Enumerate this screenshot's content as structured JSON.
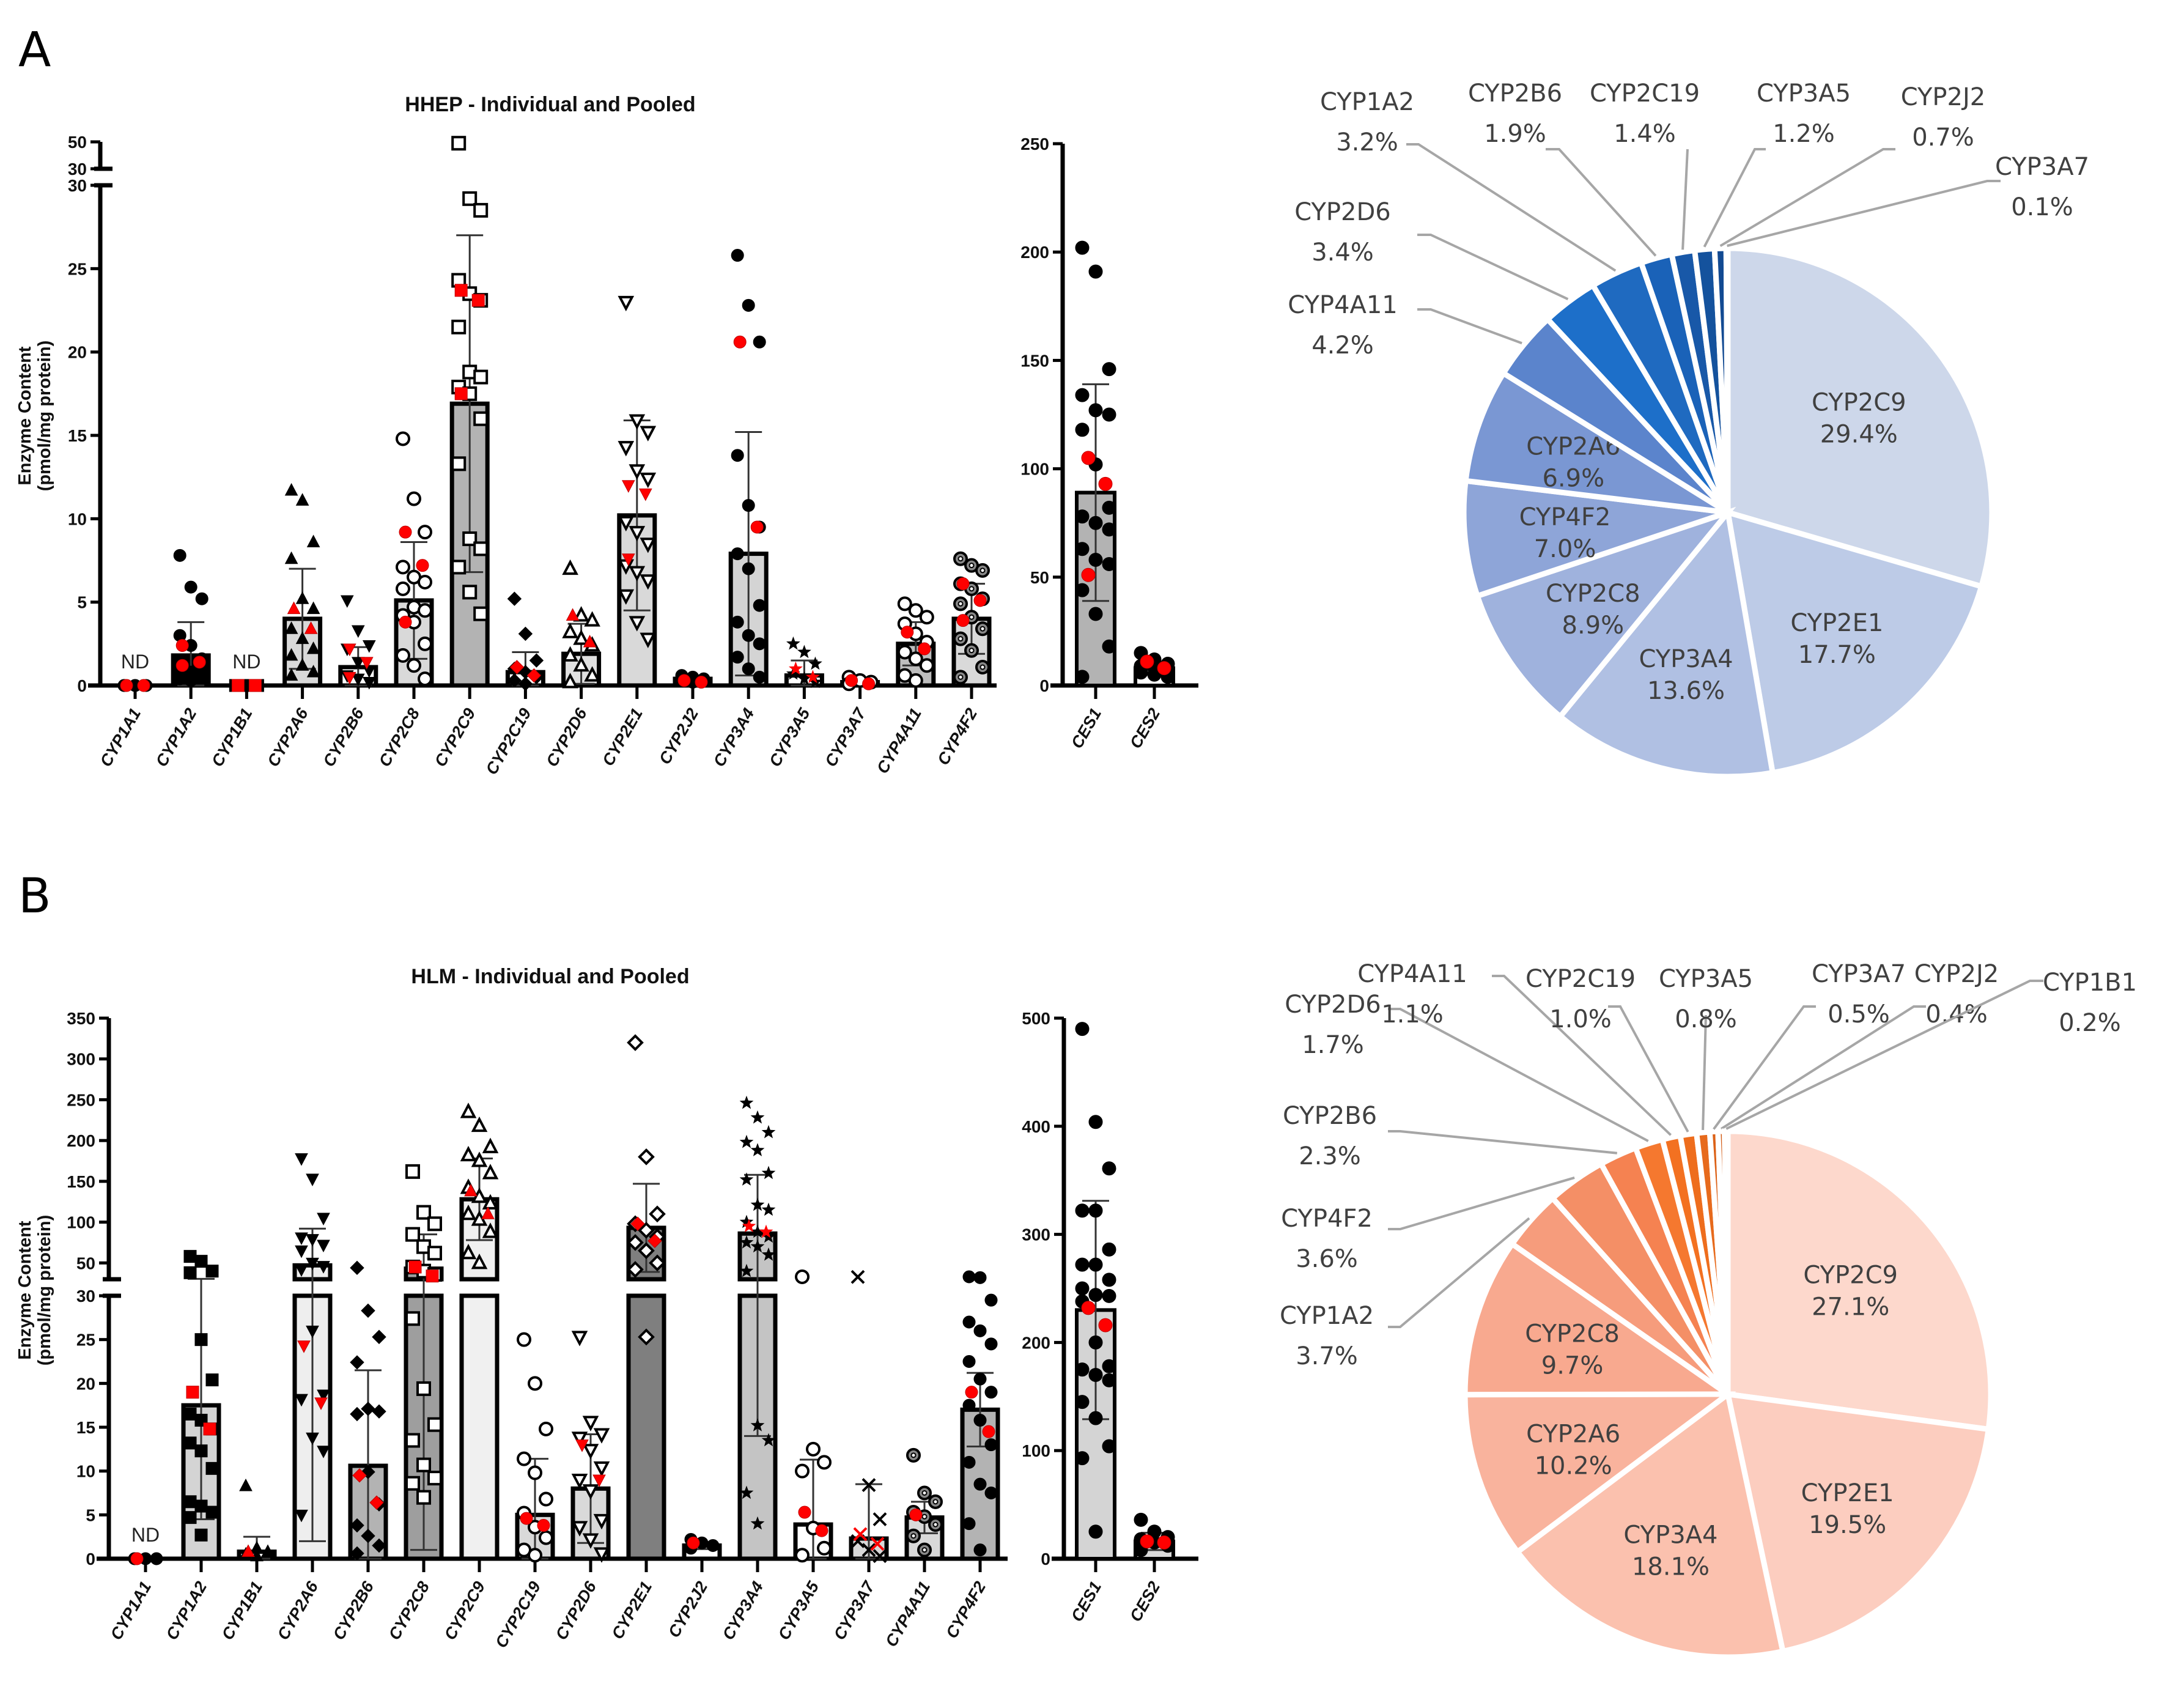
{
  "figure": {
    "panel_a_letter": "A",
    "panel_b_letter": "B"
  },
  "chart_data": [
    {
      "id": "hhep_bars",
      "type": "bar",
      "title": "HHEP - Individual and Pooled",
      "ylabel_line1": "Enzyme Content",
      "ylabel_line2": "(pmol/mg protein)",
      "xlabel": "",
      "axis_break": {
        "lower_range": [
          0,
          30
        ],
        "upper_range": [
          30,
          50
        ]
      },
      "lower_ticks": [
        "0",
        "5",
        "10",
        "15",
        "20",
        "25",
        "30"
      ],
      "upper_ticks": [
        "30",
        "50"
      ],
      "categories": [
        "CYP1A1",
        "CYP1A2",
        "CYP1B1",
        "CYP2A6",
        "CYP2B6",
        "CYP2C8",
        "CYP2C9",
        "CYP2C19",
        "CYP2D6",
        "CYP2E1",
        "CYP2J2",
        "CYP3A4",
        "CYP3A5",
        "CYP3A7",
        "CYP4A11",
        "CYP4F2"
      ],
      "values": [
        0,
        1.8,
        0,
        4.0,
        1.1,
        5.1,
        16.9,
        0.8,
        1.9,
        10.2,
        0.4,
        7.9,
        0.6,
        0.2,
        2.5,
        4.0
      ],
      "sd": [
        0,
        2.0,
        0,
        3.0,
        1.2,
        3.5,
        10.1,
        1.2,
        1.8,
        5.7,
        0.2,
        7.3,
        0.9,
        0.1,
        1.3,
        2.1
      ],
      "bar_fills": [
        "#ffffff",
        "#000000",
        "#ffffff",
        "#d9d9d9",
        "#ffffff",
        "#d9d9d9",
        "#b3b3b3",
        "#ffffff",
        "#e0e0e0",
        "#d9d9d9",
        "#ffffff",
        "#d4d4d4",
        "#ffffff",
        "#ffffff",
        "#bdbdbd",
        "#d9d9d9"
      ],
      "annotations": [
        {
          "category": "CYP1A1",
          "text": "ND"
        },
        {
          "category": "CYP1B1",
          "text": "ND"
        }
      ],
      "marker_shapes": [
        "circle",
        "circle",
        "square",
        "triangle-up",
        "triangle-down",
        "circle-open",
        "square-open",
        "diamond",
        "triangle-up-open",
        "triangle-down-open",
        "circle",
        "circle",
        "star",
        "circle-open",
        "circle-open",
        "circle-dot"
      ],
      "points": [
        [
          0,
          0,
          0,
          0,
          0
        ],
        [
          7.8,
          5.9,
          5.2,
          3.0,
          2.4,
          1.6,
          1.2,
          0.8,
          0.5,
          0.4,
          0.3
        ],
        [
          0,
          0,
          0,
          0
        ],
        [
          11.7,
          11.1,
          8.6,
          7.6,
          5.2,
          4.6,
          3.4,
          2.8,
          2.2,
          1.8,
          1.2,
          0.8,
          0.6
        ],
        [
          5.1,
          3.3,
          2.4,
          2.2,
          1.4,
          0.9,
          0.6,
          0.4,
          0.2
        ],
        [
          14.8,
          11.2,
          9.2,
          7.1,
          6.5,
          6.2,
          5.8,
          4.7,
          4.5,
          4.2,
          3.8,
          2.5,
          1.8,
          1.2,
          0.4
        ],
        [
          49,
          29.2,
          28.5,
          24.3,
          23.5,
          23.1,
          21.5,
          18.8,
          18.5,
          17.9,
          17.5,
          16.0,
          13.3,
          8.8,
          8.2,
          7.1,
          5.6,
          4.3
        ],
        [
          5.2,
          3.1,
          1.5,
          1.0,
          0.8,
          0.5,
          0.3,
          0.1
        ],
        [
          7.0,
          4.2,
          3.9,
          3.2,
          2.8,
          2.4,
          1.8,
          1.2,
          0.6,
          0.2
        ],
        [
          23.0,
          15.9,
          15.2,
          14.3,
          12.9,
          12.4,
          9.8,
          9.2,
          8.5,
          7.2,
          6.8,
          6.3,
          5.4,
          3.8,
          2.8
        ],
        [
          0.6,
          0.5,
          0.4,
          0.3,
          0.2
        ],
        [
          25.8,
          22.8,
          20.6,
          13.8,
          10.8,
          9.5,
          7.9,
          7.0,
          4.8,
          3.8,
          3.0,
          2.5,
          1.7,
          1.0,
          0.5
        ],
        [
          2.5,
          2.0,
          1.3,
          0.7,
          0.4,
          0.2
        ],
        [
          0.5,
          0.3,
          0.2,
          0.1
        ],
        [
          4.9,
          4.5,
          4.1,
          3.7,
          3.1,
          2.6,
          2.0,
          1.6,
          1.2,
          0.6,
          0.3
        ],
        [
          7.6,
          7.2,
          6.9,
          6.1,
          5.8,
          5.2,
          4.9,
          4.1,
          3.4,
          2.8,
          2.1,
          1.1,
          0.5
        ]
      ],
      "red_points": [
        [
          0,
          0
        ],
        [
          2.4,
          1.4,
          1.2
        ],
        [
          0,
          0
        ],
        [
          4.6,
          3.4
        ],
        [
          2.2,
          1.4,
          0.5
        ],
        [
          9.2,
          7.2,
          3.8
        ],
        [
          23.7,
          23.1,
          17.5
        ],
        [
          1.1,
          0.6
        ],
        [
          4.2,
          2.6
        ],
        [
          12.0,
          11.5,
          7.6
        ],
        [
          0.3,
          0.2
        ],
        [
          20.6,
          9.5
        ],
        [
          1.0,
          0.5
        ],
        [
          0.3,
          0.1
        ],
        [
          3.2,
          2.2
        ],
        [
          6.1,
          5.1,
          3.9
        ]
      ]
    },
    {
      "id": "hhep_ces",
      "type": "bar",
      "ylim": [
        0,
        250
      ],
      "ticks": [
        "0",
        "50",
        "100",
        "150",
        "200",
        "250"
      ],
      "categories": [
        "CES1",
        "CES2"
      ],
      "values": [
        89,
        8
      ],
      "sd": [
        50,
        3
      ],
      "bar_fills": [
        "#b3b3b3",
        "#ffffff"
      ],
      "points": [
        [
          202,
          191,
          146,
          134,
          127,
          125,
          118,
          102,
          82,
          78,
          75,
          72,
          63,
          58,
          56,
          44,
          33,
          18,
          4
        ],
        [
          15,
          12,
          10,
          9,
          8,
          7,
          6,
          5,
          4
        ]
      ],
      "red_points": [
        [
          105,
          93,
          51
        ],
        [
          11,
          8
        ]
      ]
    },
    {
      "id": "hhep_pie",
      "type": "pie",
      "labels": [
        "CYP2C9",
        "CYP2E1",
        "CYP3A4",
        "CYP2C8",
        "CYP4F2",
        "CYP2A6",
        "CYP4A11",
        "CYP2D6",
        "CYP1A2",
        "CYP2B6",
        "CYP2C19",
        "CYP3A5",
        "CYP2J2",
        "CYP3A7"
      ],
      "values": [
        29.4,
        17.7,
        13.6,
        8.9,
        7.0,
        6.9,
        4.2,
        3.4,
        3.2,
        1.9,
        1.4,
        1.2,
        0.7,
        0.1
      ],
      "value_labels": [
        "29.4%",
        "17.7%",
        "13.6%",
        "8.9%",
        "7.0%",
        "6.9%",
        "4.2%",
        "3.4%",
        "3.2%",
        "1.9%",
        "1.4%",
        "1.2%",
        "0.7%",
        "0.1%"
      ],
      "colors": [
        "#cdd7ea",
        "#bdcbe7",
        "#b0c0e3",
        "#9fb2dd",
        "#8ea5d8",
        "#7a97d3",
        "#5b84cc",
        "#1d6fc9",
        "#1f6ac0",
        "#1a62b8",
        "#1858a8",
        "#14529d",
        "#124a92",
        "#0f3f84"
      ],
      "start_angle_deg": 0,
      "direction": "clockwise",
      "outside_labels": [
        "CYP4A11",
        "CYP2D6",
        "CYP1A2",
        "CYP2B6",
        "CYP2C19",
        "CYP3A5",
        "CYP2J2",
        "CYP3A7"
      ]
    },
    {
      "id": "hlm_bars",
      "type": "bar",
      "title": "HLM - Individual and Pooled",
      "ylabel_line1": "Enzyme Content",
      "ylabel_line2": "(pmol/mg protein)",
      "xlabel": "",
      "axis_break": {
        "lower_range": [
          0,
          30
        ],
        "upper_range": [
          30,
          350
        ]
      },
      "lower_ticks": [
        "0",
        "5",
        "10",
        "15",
        "20",
        "25",
        "30"
      ],
      "upper_ticks": [
        "50",
        "100",
        "150",
        "200",
        "250",
        "300",
        "350"
      ],
      "categories": [
        "CYP1A1",
        "CYP1A2",
        "CYP1B1",
        "CYP2A6",
        "CYP2B6",
        "CYP2C8",
        "CYP2C9",
        "CYP2C19",
        "CYP2D6",
        "CYP2E1",
        "CYP2J2",
        "CYP3A4",
        "CYP3A5",
        "CYP3A7",
        "CYP4A11",
        "CYP4F2"
      ],
      "values": [
        0,
        17.5,
        0.8,
        47,
        10.6,
        43,
        128,
        5.0,
        8.0,
        93,
        1.5,
        86,
        3.9,
        2.3,
        4.7,
        17.0
      ],
      "sd": [
        0,
        13,
        1.7,
        45,
        10.9,
        42,
        50,
        6.4,
        6.2,
        54,
        0.4,
        72,
        7.4,
        6.2,
        1.8,
        4.2
      ],
      "bar_fills": [
        "#ffffff",
        "#d4d4d4",
        "#ffffff",
        "#eeeeee",
        "#b3b3b3",
        "#9e9e9e",
        "#f0f0f0",
        "#d9d9d9",
        "#d9d9d9",
        "#7f7f7f",
        "#ffffff",
        "#c4c4c4",
        "#ffffff",
        "#d9d9d9",
        "#d9d9d9",
        "#b3b3b3"
      ],
      "annotations": [
        {
          "category": "CYP1A1",
          "text": "ND"
        }
      ],
      "marker_shapes": [
        "circle",
        "square",
        "triangle-up",
        "triangle-down",
        "diamond",
        "square-open",
        "triangle-up-open",
        "circle-open",
        "triangle-down-open",
        "diamond-open",
        "circle",
        "star",
        "circle-open",
        "cross",
        "circle-dot",
        "circle"
      ],
      "points": [
        [
          0,
          0,
          0
        ],
        [
          58,
          52,
          40,
          38,
          25,
          20.4,
          16.5,
          15.8,
          14.8,
          13.2,
          12.3,
          10.3,
          6.5,
          6.0,
          5.3,
          4.7,
          2.7
        ],
        [
          8.3,
          1.2,
          0.8,
          0.5,
          0.3
        ],
        [
          178,
          153,
          105,
          81,
          79,
          72,
          65,
          50,
          46,
          42,
          26,
          18.7,
          18.2,
          13.8,
          12.3,
          5.0
        ],
        [
          44,
          28.3,
          25.3,
          22.4,
          17.1,
          16.8,
          16.5,
          9.9,
          6.2,
          3.8,
          2.6,
          1.5,
          0.6
        ],
        [
          162,
          112,
          98,
          85,
          70,
          62,
          45,
          40,
          36,
          27.4,
          19.4,
          15.3,
          13.5,
          10.7,
          9.2,
          8.6,
          7.0
        ],
        [
          235,
          218,
          192,
          182,
          175,
          160,
          142,
          131,
          123,
          110,
          103,
          88,
          62,
          50
        ],
        [
          25,
          20,
          14.8,
          11.4,
          9.8,
          6.8,
          5.2,
          3.6,
          2.4,
          1.0,
          0.4
        ],
        [
          25.3,
          15.6,
          14.2,
          13.8,
          12.4,
          10.4,
          9.0,
          7.8,
          4.4,
          3.6,
          2.2,
          0.6
        ],
        [
          320,
          180,
          110,
          98,
          90,
          82,
          75,
          65,
          50,
          42,
          25.3
        ],
        [
          2.2,
          1.8,
          1.5,
          1.2
        ],
        [
          246,
          228,
          210,
          198,
          188,
          160,
          152,
          121,
          115,
          100,
          88,
          82,
          75,
          70,
          60,
          40,
          15.2,
          13.5,
          7.5,
          4.0
        ],
        [
          33,
          12.5,
          11.0,
          10.0,
          3.5,
          1.2,
          0.4
        ],
        [
          32.8,
          8.4,
          4.5,
          2.0,
          1.0,
          0.3
        ],
        [
          11.8,
          7.5,
          6.5,
          5.3,
          4.8,
          3.9,
          2.6,
          1.0
        ],
        [
          33,
          32,
          29.5,
          27,
          26,
          24.5,
          22.5,
          20.5,
          19.0,
          17.5,
          15.8,
          13.0,
          11.0,
          8.5,
          7.5,
          4.0,
          1.0
        ]
      ],
      "red_points": [
        [
          0
        ],
        [
          19.0,
          14.8
        ],
        [
          0.8
        ],
        [
          24.3,
          17.8
        ],
        [
          9.5,
          6.4
        ],
        [
          45,
          34
        ],
        [
          138,
          110
        ],
        [
          4.6,
          3.8
        ],
        [
          13.0,
          9.0
        ],
        [
          98,
          77
        ],
        [
          1.8
        ],
        [
          95,
          88
        ],
        [
          5.3,
          3.2
        ],
        [
          2.8,
          1.7
        ],
        [
          5.0
        ],
        [
          19.0,
          14.5
        ]
      ]
    },
    {
      "id": "hlm_ces",
      "type": "bar",
      "ylim": [
        0,
        500
      ],
      "ticks": [
        "0",
        "100",
        "200",
        "300",
        "400",
        "500"
      ],
      "categories": [
        "CES1",
        "CES2"
      ],
      "values": [
        230,
        16
      ],
      "sd": [
        101,
        8
      ],
      "bar_fills": [
        "#d4d4d4",
        "#d9d9d9"
      ],
      "points": [
        [
          490,
          404,
          361,
          322,
          322,
          286,
          272,
          272,
          258,
          250,
          244,
          243,
          238,
          200,
          178,
          175,
          170,
          165,
          145,
          130,
          104,
          93,
          25
        ],
        [
          36,
          25,
          20,
          18,
          15,
          12,
          8
        ]
      ],
      "red_points": [
        [
          232,
          216
        ],
        [
          16,
          15
        ]
      ]
    },
    {
      "id": "hlm_pie",
      "type": "pie",
      "labels": [
        "CYP2C9",
        "CYP2E1",
        "CYP3A4",
        "CYP2A6",
        "CYP2C8",
        "CYP1A2",
        "CYP4F2",
        "CYP2B6",
        "CYP2D6",
        "CYP4A11",
        "CYP2C19",
        "CYP3A5",
        "CYP3A7",
        "CYP2J2",
        "CYP1B1"
      ],
      "values": [
        27.1,
        19.5,
        18.1,
        10.2,
        9.7,
        3.7,
        3.6,
        2.3,
        1.7,
        1.1,
        1.0,
        0.8,
        0.5,
        0.4,
        0.2
      ],
      "value_labels": [
        "27.1%",
        "19.5%",
        "18.1%",
        "10.2%",
        "9.7%",
        "3.7%",
        "3.6%",
        "2.3%",
        "1.7%",
        "1.1%",
        "1.0%",
        "0.8%",
        "0.5%",
        "0.4%",
        "0.2%"
      ],
      "colors": [
        "#fdd8cc",
        "#fccdbf",
        "#fbc1ae",
        "#f9b39d",
        "#f8a98f",
        "#f69c7c",
        "#f48f66",
        "#f58251",
        "#f5782f",
        "#f37121",
        "#ee6d1d",
        "#e76a1c",
        "#dc6218",
        "#d35c16",
        "#c85514"
      ],
      "start_angle_deg": 0,
      "direction": "clockwise",
      "outside_labels": [
        "CYP1A2",
        "CYP4F2",
        "CYP2B6",
        "CYP2D6",
        "CYP4A11",
        "CYP2C19",
        "CYP3A5",
        "CYP3A7",
        "CYP2J2",
        "CYP1B1"
      ]
    }
  ]
}
